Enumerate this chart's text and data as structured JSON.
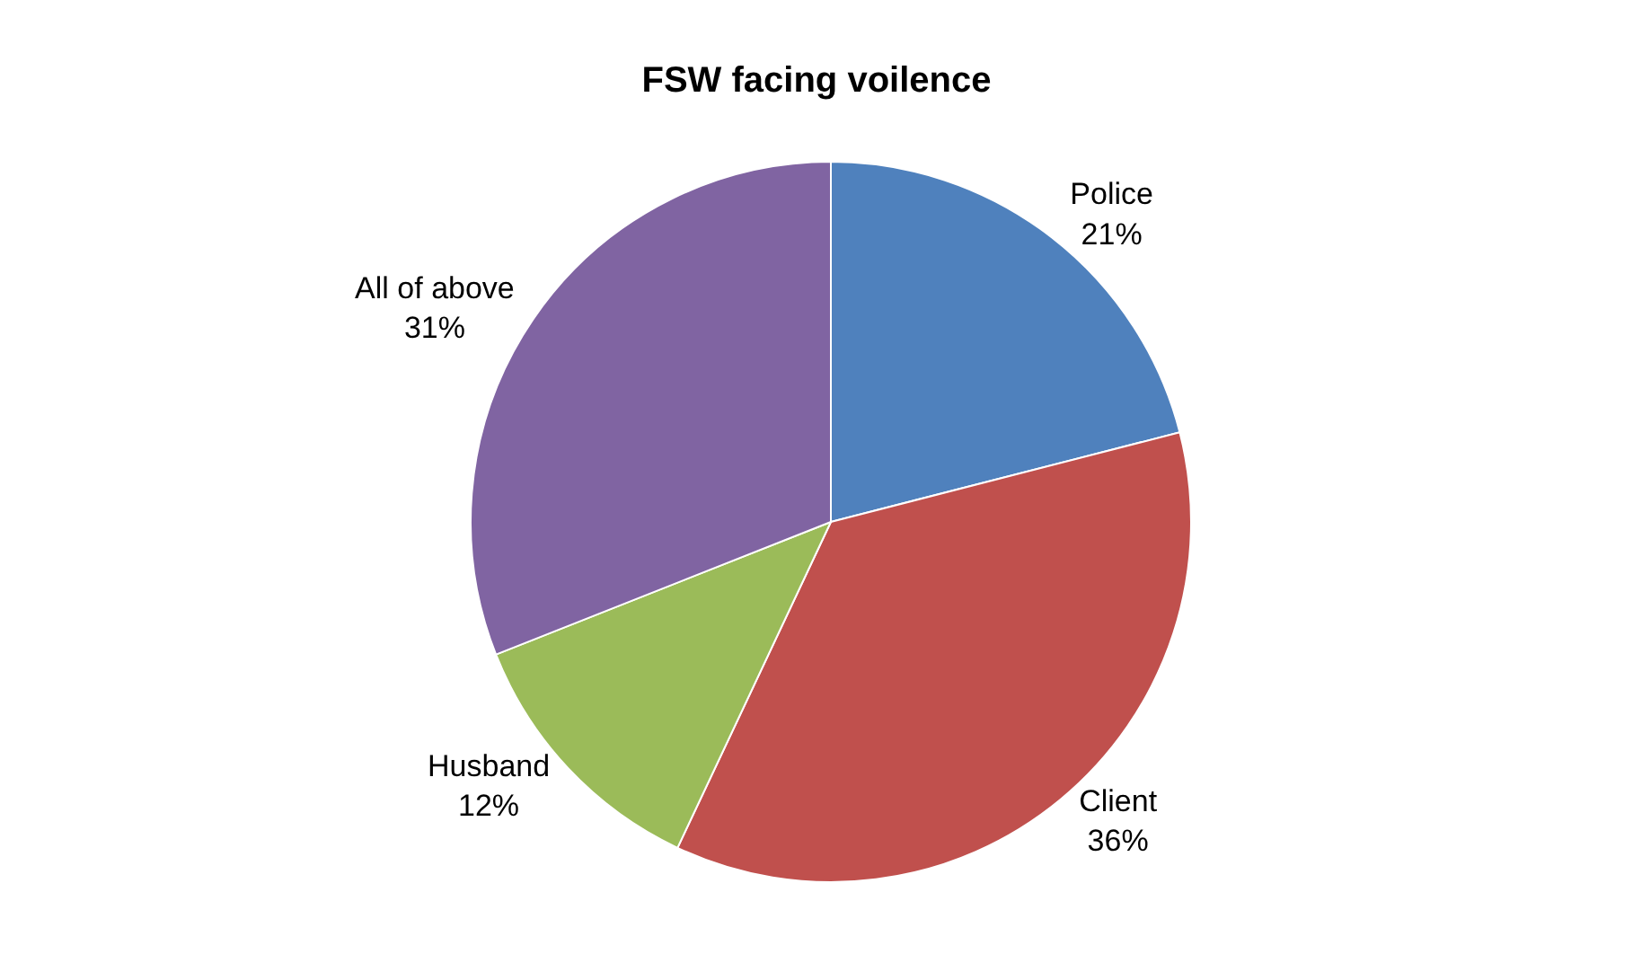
{
  "chart_data": {
    "type": "pie",
    "title": "FSW facing voilence",
    "categories": [
      "Police",
      "Client",
      "Husband",
      "All of above"
    ],
    "values": [
      21,
      36,
      12,
      31
    ],
    "value_labels": [
      "21%",
      "36%",
      "12%",
      "31%"
    ],
    "colors": [
      "#4f81bd",
      "#c0504d",
      "#9bbb59",
      "#8064a2"
    ],
    "legend": false
  }
}
